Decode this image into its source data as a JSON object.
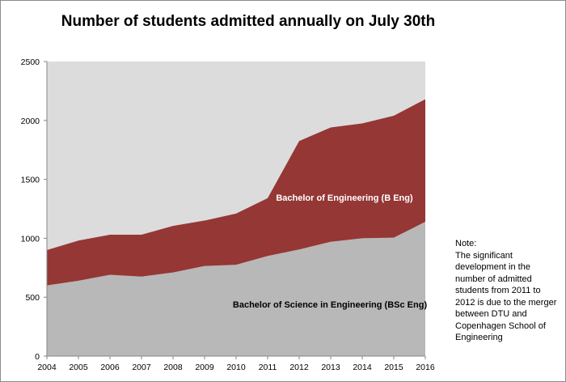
{
  "chart_data": {
    "type": "area",
    "stacked": true,
    "title": "Number of students admitted annually on July 30th",
    "xlabel": "",
    "ylabel": "",
    "categories": [
      "2004",
      "2005",
      "2006",
      "2007",
      "2008",
      "2009",
      "2010",
      "2011",
      "2012",
      "2013",
      "2014",
      "2015",
      "2016"
    ],
    "ylim": [
      0,
      2500
    ],
    "yticks": [
      0,
      500,
      1000,
      1500,
      2000,
      2500
    ],
    "grid": false,
    "series": [
      {
        "name": "Bachelor of Science in Engineering (BSc Eng)",
        "color": "#b8b8b8",
        "values": [
          600,
          640,
          690,
          675,
          710,
          765,
          775,
          850,
          905,
          970,
          1000,
          1005,
          1140
        ]
      },
      {
        "name": "Bachelor of Engineering (B Eng)",
        "color": "#953735",
        "values": [
          300,
          340,
          340,
          355,
          395,
          385,
          435,
          490,
          920,
          970,
          975,
          1035,
          1040
        ]
      }
    ],
    "note_title": "Note:",
    "note_text": "The significant development in the number of admitted students  from 2011 to 2012 is due to the merger between DTU and Copenhagen School of Engineering"
  }
}
